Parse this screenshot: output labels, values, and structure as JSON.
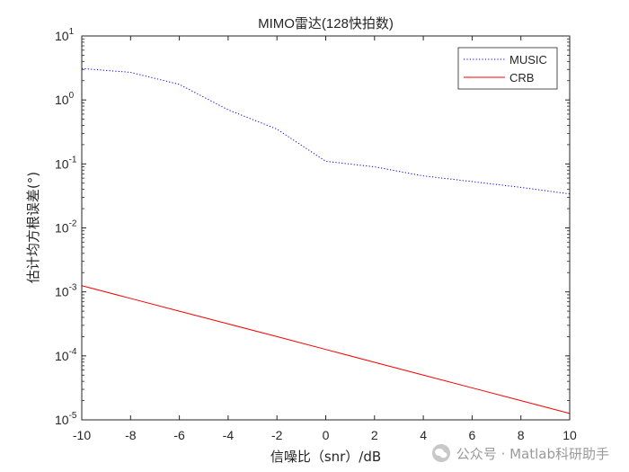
{
  "chart_data": {
    "type": "line",
    "title": "MIMO雷达(128快拍数)",
    "xlabel": "信噪比（snr）/dB",
    "ylabel": "估计均方根误差(°)",
    "xlim": [
      -10,
      10
    ],
    "ylim": [
      1e-05,
      10
    ],
    "yscale": "log",
    "x_ticks": [
      -10,
      -8,
      -6,
      -4,
      -2,
      0,
      2,
      4,
      6,
      8,
      10
    ],
    "x_tick_labels": [
      "-10",
      "-8",
      "-6",
      "-4",
      "-2",
      "0",
      "2",
      "4",
      "6",
      "8",
      "10"
    ],
    "y_ticks": [
      1e-05,
      0.0001,
      0.001,
      0.01,
      0.1,
      1,
      10
    ],
    "y_tick_labels": [
      {
        "base": "10",
        "exp": "-5"
      },
      {
        "base": "10",
        "exp": "-4"
      },
      {
        "base": "10",
        "exp": "-3"
      },
      {
        "base": "10",
        "exp": "-2"
      },
      {
        "base": "10",
        "exp": "-1"
      },
      {
        "base": "10",
        "exp": "0"
      },
      {
        "base": "10",
        "exp": "1"
      }
    ],
    "grid": false,
    "legend_position": "top-right",
    "series": [
      {
        "name": "MUSIC",
        "color": "#0000ff",
        "style": "dotted",
        "x": [
          -10,
          -8,
          -6,
          -4,
          -2,
          0,
          2,
          4,
          6,
          8,
          10
        ],
        "y": [
          3.1,
          2.7,
          1.75,
          0.7,
          0.35,
          0.11,
          0.09,
          0.065,
          0.053,
          0.043,
          0.034
        ]
      },
      {
        "name": "CRB",
        "color": "#ff0000",
        "style": "solid",
        "x": [
          -10,
          -8,
          -6,
          -4,
          -2,
          0,
          2,
          4,
          6,
          8,
          10
        ],
        "y": [
          0.00125,
          0.00079,
          0.0005,
          0.000316,
          0.0002,
          0.000126,
          7.94e-05,
          5e-05,
          3.16e-05,
          2e-05,
          1.26e-05
        ]
      }
    ]
  },
  "watermark": {
    "text": "公众号 · Matlab科研助手",
    "icon": "wechat-icon"
  }
}
